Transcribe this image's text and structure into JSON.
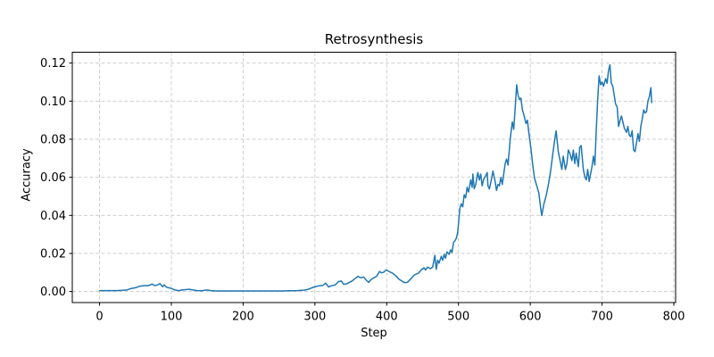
{
  "chart_data": {
    "type": "line",
    "title": "Retrosynthesis",
    "xlabel": "Step",
    "ylabel": "Accuracy",
    "x_ticks": [
      0,
      100,
      200,
      300,
      400,
      500,
      600,
      700,
      800
    ],
    "y_ticks": [
      0.0,
      0.02,
      0.04,
      0.06,
      0.08,
      0.1,
      0.12
    ],
    "xlim": [
      -38,
      802.5
    ],
    "ylim": [
      -0.0058,
      0.1257
    ],
    "grid": "dashed-both-axes",
    "legend": "none",
    "line_color": "#1f77b4",
    "grid_color": "#c9c9c9",
    "spine_color": "#000000",
    "text_color": "#000000",
    "series": [
      {
        "name": "Accuracy",
        "points": [
          [
            0,
            0.0005
          ],
          [
            8,
            0.0005
          ],
          [
            16,
            0.0005
          ],
          [
            24,
            0.0005
          ],
          [
            32,
            0.0006
          ],
          [
            38,
            0.0008
          ],
          [
            44,
            0.0016
          ],
          [
            50,
            0.002
          ],
          [
            56,
            0.0028
          ],
          [
            62,
            0.0031
          ],
          [
            68,
            0.0031
          ],
          [
            73,
            0.0039
          ],
          [
            77,
            0.0031
          ],
          [
            81,
            0.0035
          ],
          [
            84,
            0.0042
          ],
          [
            88,
            0.0025
          ],
          [
            90,
            0.0035
          ],
          [
            93,
            0.0023
          ],
          [
            96,
            0.002
          ],
          [
            100,
            0.0016
          ],
          [
            105,
            0.0008
          ],
          [
            110,
            0.0005
          ],
          [
            115,
            0.0008
          ],
          [
            120,
            0.001
          ],
          [
            125,
            0.0012
          ],
          [
            130,
            0.0008
          ],
          [
            136,
            0.0005
          ],
          [
            142,
            0.0004
          ],
          [
            150,
            0.0008
          ],
          [
            156,
            0.0004
          ],
          [
            165,
            0.0003
          ],
          [
            175,
            0.0003
          ],
          [
            185,
            0.0003
          ],
          [
            195,
            0.0003
          ],
          [
            205,
            0.0003
          ],
          [
            215,
            0.0003
          ],
          [
            225,
            0.0003
          ],
          [
            235,
            0.0003
          ],
          [
            245,
            0.0003
          ],
          [
            255,
            0.0003
          ],
          [
            265,
            0.0004
          ],
          [
            275,
            0.0005
          ],
          [
            285,
            0.0007
          ],
          [
            291,
            0.0012
          ],
          [
            296,
            0.002
          ],
          [
            301,
            0.0026
          ],
          [
            306,
            0.003
          ],
          [
            311,
            0.0032
          ],
          [
            315,
            0.0044
          ],
          [
            319,
            0.0024
          ],
          [
            323,
            0.003
          ],
          [
            328,
            0.0034
          ],
          [
            333,
            0.0052
          ],
          [
            337,
            0.0055
          ],
          [
            340,
            0.0038
          ],
          [
            344,
            0.004
          ],
          [
            348,
            0.0048
          ],
          [
            352,
            0.0056
          ],
          [
            356,
            0.0068
          ],
          [
            360,
            0.008
          ],
          [
            364,
            0.0072
          ],
          [
            368,
            0.0076
          ],
          [
            372,
            0.0058
          ],
          [
            375,
            0.0048
          ],
          [
            378,
            0.0062
          ],
          [
            382,
            0.0072
          ],
          [
            386,
            0.008
          ],
          [
            390,
            0.0105
          ],
          [
            393,
            0.0098
          ],
          [
            396,
            0.0102
          ],
          [
            399,
            0.0113
          ],
          [
            402,
            0.0108
          ],
          [
            405,
            0.0102
          ],
          [
            408,
            0.0097
          ],
          [
            411,
            0.0088
          ],
          [
            414,
            0.0078
          ],
          [
            417,
            0.0065
          ],
          [
            420,
            0.0058
          ],
          [
            423,
            0.005
          ],
          [
            426,
            0.0046
          ],
          [
            429,
            0.0049
          ],
          [
            432,
            0.006
          ],
          [
            435,
            0.0072
          ],
          [
            438,
            0.0085
          ],
          [
            441,
            0.0092
          ],
          [
            444,
            0.0096
          ],
          [
            448,
            0.0113
          ],
          [
            452,
            0.0125
          ],
          [
            454,
            0.0113
          ],
          [
            457,
            0.0128
          ],
          [
            461,
            0.012
          ],
          [
            464,
            0.0128
          ],
          [
            467,
            0.019
          ],
          [
            469,
            0.0117
          ],
          [
            471,
            0.0164
          ],
          [
            473,
            0.0149
          ],
          [
            476,
            0.0185
          ],
          [
            478,
            0.0164
          ],
          [
            480,
            0.0195
          ],
          [
            482,
            0.0175
          ],
          [
            484,
            0.0208
          ],
          [
            487,
            0.0195
          ],
          [
            489,
            0.0219
          ],
          [
            491,
            0.0205
          ],
          [
            493,
            0.0258
          ],
          [
            495,
            0.0266
          ],
          [
            497,
            0.028
          ],
          [
            499,
            0.0313
          ],
          [
            502,
            0.0438
          ],
          [
            504,
            0.0461
          ],
          [
            506,
            0.0445
          ],
          [
            508,
            0.0508
          ],
          [
            510,
            0.0492
          ],
          [
            512,
            0.0547
          ],
          [
            514,
            0.0523
          ],
          [
            517,
            0.0586
          ],
          [
            519,
            0.0547
          ],
          [
            520,
            0.0617
          ],
          [
            522,
            0.054
          ],
          [
            524,
            0.0562
          ],
          [
            527,
            0.0625
          ],
          [
            529,
            0.0586
          ],
          [
            531,
            0.0617
          ],
          [
            533,
            0.0555
          ],
          [
            535,
            0.059
          ],
          [
            538,
            0.0609
          ],
          [
            540,
            0.0625
          ],
          [
            541,
            0.0555
          ],
          [
            543,
            0.0539
          ],
          [
            546,
            0.059
          ],
          [
            548,
            0.0633
          ],
          [
            551,
            0.058
          ],
          [
            553,
            0.0531
          ],
          [
            555,
            0.0562
          ],
          [
            557,
            0.0555
          ],
          [
            559,
            0.06
          ],
          [
            561,
            0.0562
          ],
          [
            563,
            0.0617
          ],
          [
            565,
            0.0672
          ],
          [
            567,
            0.0696
          ],
          [
            569,
            0.0664
          ],
          [
            572,
            0.0797
          ],
          [
            575,
            0.0891
          ],
          [
            577,
            0.0852
          ],
          [
            579,
            0.0961
          ],
          [
            581,
            0.1086
          ],
          [
            583,
            0.1031
          ],
          [
            585,
            0.1008
          ],
          [
            587,
            0.1016
          ],
          [
            589,
            0.0954
          ],
          [
            591,
            0.093
          ],
          [
            594,
            0.0883
          ],
          [
            596,
            0.09
          ],
          [
            598,
            0.0836
          ],
          [
            601,
            0.075
          ],
          [
            604,
            0.0649
          ],
          [
            606,
            0.0594
          ],
          [
            609,
            0.0555
          ],
          [
            612,
            0.0516
          ],
          [
            614,
            0.0453
          ],
          [
            616,
            0.0399
          ],
          [
            619,
            0.046
          ],
          [
            622,
            0.0501
          ],
          [
            625,
            0.0555
          ],
          [
            628,
            0.0625
          ],
          [
            631,
            0.0712
          ],
          [
            634,
            0.0797
          ],
          [
            636,
            0.0844
          ],
          [
            639,
            0.0735
          ],
          [
            642,
            0.068
          ],
          [
            644,
            0.0641
          ],
          [
            646,
            0.0711
          ],
          [
            649,
            0.0641
          ],
          [
            651,
            0.0672
          ],
          [
            653,
            0.0743
          ],
          [
            655,
            0.0727
          ],
          [
            658,
            0.0688
          ],
          [
            660,
            0.0743
          ],
          [
            662,
            0.0672
          ],
          [
            664,
            0.0727
          ],
          [
            667,
            0.0656
          ],
          [
            669,
            0.0758
          ],
          [
            671,
            0.0766
          ],
          [
            674,
            0.0641
          ],
          [
            676,
            0.0602
          ],
          [
            678,
            0.0586
          ],
          [
            680,
            0.0641
          ],
          [
            682,
            0.0578
          ],
          [
            684,
            0.0617
          ],
          [
            686,
            0.0656
          ],
          [
            688,
            0.0711
          ],
          [
            690,
            0.0664
          ],
          [
            692,
            0.085
          ],
          [
            694,
            0.101
          ],
          [
            696,
            0.1133
          ],
          [
            698,
            0.1086
          ],
          [
            700,
            0.1101
          ],
          [
            702,
            0.1078
          ],
          [
            705,
            0.1118
          ],
          [
            707,
            0.1094
          ],
          [
            709,
            0.116
          ],
          [
            711,
            0.1191
          ],
          [
            712,
            0.114
          ],
          [
            713,
            0.1094
          ],
          [
            715,
            0.1078
          ],
          [
            717,
            0.1031
          ],
          [
            719,
            0.0984
          ],
          [
            721,
            0.0969
          ],
          [
            723,
            0.0867
          ],
          [
            725,
            0.0898
          ],
          [
            727,
            0.0922
          ],
          [
            729,
            0.0891
          ],
          [
            731,
            0.0859
          ],
          [
            734,
            0.0836
          ],
          [
            736,
            0.0867
          ],
          [
            738,
            0.082
          ],
          [
            740,
            0.0813
          ],
          [
            742,
            0.0845
          ],
          [
            744,
            0.0743
          ],
          [
            746,
            0.0735
          ],
          [
            748,
            0.0782
          ],
          [
            750,
            0.0829
          ],
          [
            752,
            0.0789
          ],
          [
            754,
            0.0867
          ],
          [
            756,
            0.0906
          ],
          [
            758,
            0.0954
          ],
          [
            760,
            0.0938
          ],
          [
            762,
            0.0945
          ],
          [
            764,
            0.1
          ],
          [
            766,
            0.1024
          ],
          [
            768,
            0.1071
          ],
          [
            769,
            0.0992
          ]
        ]
      }
    ]
  }
}
